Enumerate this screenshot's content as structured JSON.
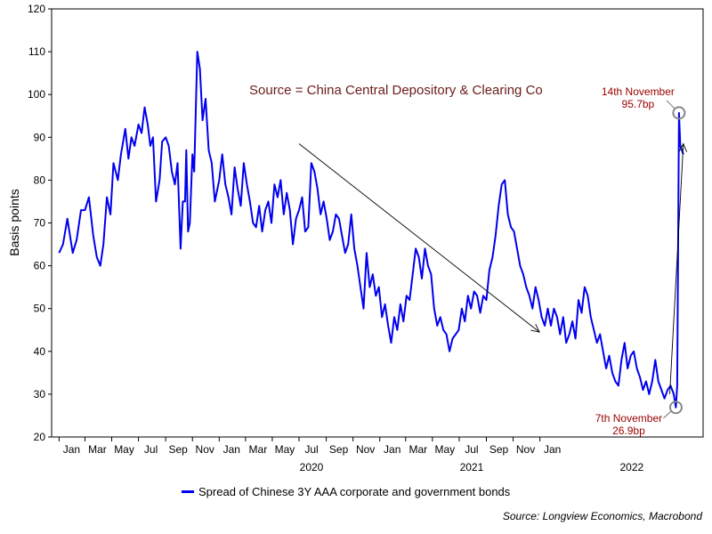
{
  "chart_data": {
    "type": "line",
    "ylabel": "Basis points",
    "ylim": [
      20,
      120
    ],
    "yticks": [
      20,
      30,
      40,
      50,
      60,
      70,
      80,
      90,
      100,
      110,
      120
    ],
    "month_ticks": [
      "Jan",
      "Mar",
      "May",
      "Jul",
      "Sep",
      "Nov",
      "Jan",
      "Mar",
      "May",
      "Jul",
      "Sep",
      "Nov",
      "Jan",
      "Mar",
      "May",
      "Jul",
      "Sep",
      "Nov",
      "Jan"
    ],
    "year_labels": [
      "2020",
      "2021",
      "2022"
    ],
    "legend_position": "bottom",
    "grid": false,
    "annotation_source": "Source = China Central Depository & Clearing Co",
    "annotations": [
      {
        "date": "2022-11-14",
        "value": 95.7,
        "line1": "14th November",
        "line2": "95.7bp"
      },
      {
        "date": "2022-11-07",
        "value": 26.9,
        "line1": "7th November",
        "line2": "26.9bp"
      }
    ],
    "trend_arrows": [
      {
        "from": {
          "date": "2020-07-01",
          "value": 88.5
        },
        "to": {
          "date": "2021-12-31",
          "value": 44.5
        }
      },
      {
        "from": {
          "date": "2022-10-24",
          "value": 30
        },
        "to": {
          "date": "2022-11-24",
          "value": 88.5
        }
      }
    ],
    "series": [
      {
        "name": "Spread of Chinese 3Y AAA corporate and government bonds",
        "color": "#0000ee",
        "points": [
          [
            "2019-01-01",
            63
          ],
          [
            "2019-01-10",
            65
          ],
          [
            "2019-01-20",
            71
          ],
          [
            "2019-02-01",
            63
          ],
          [
            "2019-02-10",
            66
          ],
          [
            "2019-02-20",
            73
          ],
          [
            "2019-03-01",
            73
          ],
          [
            "2019-03-10",
            76
          ],
          [
            "2019-03-20",
            67
          ],
          [
            "2019-03-28",
            62
          ],
          [
            "2019-04-05",
            60
          ],
          [
            "2019-04-12",
            65
          ],
          [
            "2019-04-20",
            76
          ],
          [
            "2019-04-28",
            72
          ],
          [
            "2019-05-05",
            84
          ],
          [
            "2019-05-15",
            80
          ],
          [
            "2019-05-22",
            86
          ],
          [
            "2019-06-01",
            92
          ],
          [
            "2019-06-08",
            85
          ],
          [
            "2019-06-15",
            90
          ],
          [
            "2019-06-22",
            88
          ],
          [
            "2019-07-01",
            93
          ],
          [
            "2019-07-08",
            91
          ],
          [
            "2019-07-15",
            97
          ],
          [
            "2019-07-22",
            93
          ],
          [
            "2019-07-28",
            88
          ],
          [
            "2019-08-03",
            90
          ],
          [
            "2019-08-10",
            75
          ],
          [
            "2019-08-18",
            80
          ],
          [
            "2019-08-24",
            89
          ],
          [
            "2019-09-01",
            90
          ],
          [
            "2019-09-08",
            88
          ],
          [
            "2019-09-15",
            82
          ],
          [
            "2019-09-22",
            79
          ],
          [
            "2019-09-28",
            84
          ],
          [
            "2019-10-05",
            64
          ],
          [
            "2019-10-10",
            75
          ],
          [
            "2019-10-15",
            75
          ],
          [
            "2019-10-18",
            87
          ],
          [
            "2019-10-22",
            68
          ],
          [
            "2019-10-26",
            70
          ],
          [
            "2019-11-01",
            86
          ],
          [
            "2019-11-05",
            82
          ],
          [
            "2019-11-12",
            110
          ],
          [
            "2019-11-18",
            106
          ],
          [
            "2019-11-24",
            94
          ],
          [
            "2019-12-01",
            99
          ],
          [
            "2019-12-08",
            87
          ],
          [
            "2019-12-15",
            84
          ],
          [
            "2019-12-22",
            75
          ],
          [
            "2020-01-01",
            80
          ],
          [
            "2020-01-08",
            86
          ],
          [
            "2020-01-15",
            79
          ],
          [
            "2020-01-22",
            76
          ],
          [
            "2020-01-29",
            72
          ],
          [
            "2020-02-05",
            83
          ],
          [
            "2020-02-12",
            78
          ],
          [
            "2020-02-19",
            74
          ],
          [
            "2020-02-26",
            84
          ],
          [
            "2020-03-04",
            79
          ],
          [
            "2020-03-11",
            75
          ],
          [
            "2020-03-18",
            70
          ],
          [
            "2020-03-25",
            69
          ],
          [
            "2020-04-01",
            74
          ],
          [
            "2020-04-08",
            68
          ],
          [
            "2020-04-15",
            73
          ],
          [
            "2020-04-22",
            75
          ],
          [
            "2020-04-29",
            70
          ],
          [
            "2020-05-06",
            79
          ],
          [
            "2020-05-13",
            76
          ],
          [
            "2020-05-20",
            80
          ],
          [
            "2020-05-27",
            72
          ],
          [
            "2020-06-03",
            77
          ],
          [
            "2020-06-10",
            73
          ],
          [
            "2020-06-17",
            65
          ],
          [
            "2020-06-24",
            71
          ],
          [
            "2020-07-01",
            73
          ],
          [
            "2020-07-08",
            76
          ],
          [
            "2020-07-15",
            68
          ],
          [
            "2020-07-22",
            69
          ],
          [
            "2020-07-29",
            84
          ],
          [
            "2020-08-05",
            82
          ],
          [
            "2020-08-12",
            78
          ],
          [
            "2020-08-19",
            72
          ],
          [
            "2020-08-26",
            75
          ],
          [
            "2020-09-02",
            71
          ],
          [
            "2020-09-09",
            66
          ],
          [
            "2020-09-16",
            68
          ],
          [
            "2020-09-23",
            72
          ],
          [
            "2020-09-30",
            71
          ],
          [
            "2020-10-07",
            67
          ],
          [
            "2020-10-14",
            63
          ],
          [
            "2020-10-21",
            65
          ],
          [
            "2020-10-28",
            72
          ],
          [
            "2020-11-04",
            64
          ],
          [
            "2020-11-11",
            60
          ],
          [
            "2020-11-18",
            55
          ],
          [
            "2020-11-25",
            50
          ],
          [
            "2020-12-02",
            63
          ],
          [
            "2020-12-09",
            55
          ],
          [
            "2020-12-16",
            58
          ],
          [
            "2020-12-23",
            53
          ],
          [
            "2020-12-30",
            55
          ],
          [
            "2021-01-06",
            48
          ],
          [
            "2021-01-13",
            51
          ],
          [
            "2021-01-20",
            46
          ],
          [
            "2021-01-27",
            42
          ],
          [
            "2021-02-03",
            48
          ],
          [
            "2021-02-10",
            45
          ],
          [
            "2021-02-17",
            51
          ],
          [
            "2021-02-24",
            47
          ],
          [
            "2021-03-03",
            53
          ],
          [
            "2021-03-10",
            52
          ],
          [
            "2021-03-17",
            58
          ],
          [
            "2021-03-24",
            64
          ],
          [
            "2021-03-31",
            62
          ],
          [
            "2021-04-07",
            57
          ],
          [
            "2021-04-14",
            64
          ],
          [
            "2021-04-21",
            60
          ],
          [
            "2021-04-28",
            58
          ],
          [
            "2021-05-05",
            50
          ],
          [
            "2021-05-12",
            46
          ],
          [
            "2021-05-19",
            48
          ],
          [
            "2021-05-26",
            45
          ],
          [
            "2021-06-02",
            44
          ],
          [
            "2021-06-09",
            40
          ],
          [
            "2021-06-16",
            43
          ],
          [
            "2021-06-23",
            44
          ],
          [
            "2021-06-30",
            45
          ],
          [
            "2021-07-07",
            50
          ],
          [
            "2021-07-14",
            47
          ],
          [
            "2021-07-21",
            53
          ],
          [
            "2021-07-28",
            50
          ],
          [
            "2021-08-04",
            54
          ],
          [
            "2021-08-11",
            53
          ],
          [
            "2021-08-18",
            49
          ],
          [
            "2021-08-25",
            53
          ],
          [
            "2021-09-01",
            52
          ],
          [
            "2021-09-08",
            59
          ],
          [
            "2021-09-15",
            62
          ],
          [
            "2021-09-22",
            67
          ],
          [
            "2021-09-29",
            74
          ],
          [
            "2021-10-06",
            79
          ],
          [
            "2021-10-13",
            80
          ],
          [
            "2021-10-20",
            72
          ],
          [
            "2021-10-27",
            69
          ],
          [
            "2021-11-03",
            68
          ],
          [
            "2021-11-10",
            64
          ],
          [
            "2021-11-17",
            60
          ],
          [
            "2021-11-24",
            58
          ],
          [
            "2021-12-01",
            55
          ],
          [
            "2021-12-08",
            53
          ],
          [
            "2021-12-15",
            50
          ],
          [
            "2021-12-22",
            55
          ],
          [
            "2021-12-29",
            52
          ],
          [
            "2022-01-05",
            48
          ],
          [
            "2022-01-12",
            46
          ],
          [
            "2022-01-19",
            50
          ],
          [
            "2022-01-26",
            46
          ],
          [
            "2022-02-02",
            50
          ],
          [
            "2022-02-09",
            48
          ],
          [
            "2022-02-16",
            44
          ],
          [
            "2022-02-23",
            48
          ],
          [
            "2022-03-02",
            42
          ],
          [
            "2022-03-09",
            44
          ],
          [
            "2022-03-16",
            47
          ],
          [
            "2022-03-23",
            43
          ],
          [
            "2022-03-30",
            52
          ],
          [
            "2022-04-06",
            49
          ],
          [
            "2022-04-13",
            55
          ],
          [
            "2022-04-20",
            53
          ],
          [
            "2022-04-27",
            48
          ],
          [
            "2022-05-04",
            45
          ],
          [
            "2022-05-11",
            42
          ],
          [
            "2022-05-18",
            44
          ],
          [
            "2022-05-25",
            40
          ],
          [
            "2022-06-01",
            36
          ],
          [
            "2022-06-08",
            39
          ],
          [
            "2022-06-15",
            35
          ],
          [
            "2022-06-22",
            33
          ],
          [
            "2022-06-29",
            32
          ],
          [
            "2022-07-06",
            38
          ],
          [
            "2022-07-13",
            42
          ],
          [
            "2022-07-20",
            36
          ],
          [
            "2022-07-27",
            39
          ],
          [
            "2022-08-03",
            40
          ],
          [
            "2022-08-10",
            36
          ],
          [
            "2022-08-17",
            34
          ],
          [
            "2022-08-24",
            31
          ],
          [
            "2022-08-31",
            33
          ],
          [
            "2022-09-07",
            30
          ],
          [
            "2022-09-14",
            33
          ],
          [
            "2022-09-21",
            38
          ],
          [
            "2022-09-28",
            33
          ],
          [
            "2022-10-05",
            31
          ],
          [
            "2022-10-12",
            29
          ],
          [
            "2022-10-19",
            31
          ],
          [
            "2022-10-26",
            32
          ],
          [
            "2022-11-02",
            30
          ],
          [
            "2022-11-07",
            26.9
          ],
          [
            "2022-11-10",
            32
          ],
          [
            "2022-11-14",
            95.7
          ],
          [
            "2022-11-17",
            88
          ],
          [
            "2022-11-24",
            86
          ]
        ]
      }
    ]
  },
  "credit": "Source: Longview Economics, Macrobond"
}
